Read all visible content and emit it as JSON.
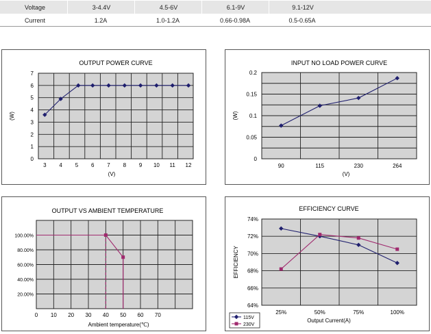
{
  "spec_table": {
    "rows": [
      {
        "label": "Voltage",
        "values": [
          "3-4.4V",
          "4.5-6V",
          "6.1-9V",
          "9.1-12V"
        ]
      },
      {
        "label": "Current",
        "values": [
          "1.2A",
          "1.0-1.2A",
          "0.66-0.98A",
          "0.5-0.65A"
        ]
      }
    ]
  },
  "chart_data": [
    {
      "type": "line",
      "title": "OUTPUT POWER CURVE",
      "xlabel": "(V)",
      "ylabel": "(W)",
      "x_ticks": [
        "3",
        "4",
        "5",
        "6",
        "7",
        "8",
        "9",
        "10",
        "11",
        "12"
      ],
      "y_ticks": [
        "0",
        "1",
        "2",
        "3",
        "4",
        "5",
        "6",
        "7"
      ],
      "xlim": [
        2.6,
        12.3
      ],
      "ylim": [
        0,
        7
      ],
      "grid": true,
      "series": [
        {
          "color": "#1f1f6e",
          "marker": "diamond",
          "x": [
            3,
            4,
            5.1,
            6,
            7,
            8,
            9,
            10,
            11,
            12
          ],
          "y": [
            3.6,
            4.9,
            6,
            6,
            6,
            6,
            6,
            6,
            6,
            6
          ]
        }
      ]
    },
    {
      "type": "line",
      "title": "INPUT NO LOAD POWER CURVE",
      "xlabel": "(V)",
      "ylabel": "(W)",
      "categories": [
        "90",
        "115",
        "230",
        "264"
      ],
      "y_ticks": [
        "0",
        "0.05",
        "0.1",
        "0.15",
        "0.2"
      ],
      "ylim": [
        0,
        0.2
      ],
      "grid": true,
      "series": [
        {
          "color": "#1f1f6e",
          "marker": "diamond",
          "values": [
            0.077,
            0.123,
            0.141,
            0.187
          ]
        }
      ]
    },
    {
      "type": "line",
      "title": "OUTPUT VS AMBIENT TEMPERATURE",
      "xlabel": "Ambient temperature(℃)",
      "ylabel": "",
      "x_ticks": [
        "0",
        "10",
        "20",
        "30",
        "40",
        "50",
        "60",
        "70"
      ],
      "y_ticks": [
        "20.00%",
        "40.00%",
        "60.00%",
        "80.00%",
        "100.00%"
      ],
      "xlim": [
        0,
        90
      ],
      "ylim": [
        0,
        1.2
      ],
      "grid": true,
      "series": [
        {
          "color": "#a02a6e",
          "marker": "square",
          "x": [
            0,
            40,
            50
          ],
          "y": [
            1.0,
            1.0,
            0.7
          ]
        }
      ],
      "annotations": [
        {
          "type": "vertical-dashed",
          "x": 40,
          "from": 0,
          "to": 1.0
        },
        {
          "type": "vertical-solid",
          "x": 50,
          "from": 0,
          "to": 0.7
        }
      ]
    },
    {
      "type": "line",
      "title": "EFFICIENCY  CURVE",
      "xlabel": "Output Current(A)",
      "ylabel": "EFFICIENCY",
      "categories": [
        "25%",
        "50%",
        "75%",
        "100%"
      ],
      "y_ticks": [
        "64%",
        "66%",
        "68%",
        "70%",
        "72%",
        "74%"
      ],
      "ylim": [
        64,
        74
      ],
      "grid": true,
      "legend": "bottom-left",
      "series": [
        {
          "name": "115V",
          "color": "#1f1f6e",
          "marker": "diamond",
          "values": [
            72.9,
            72.0,
            71.0,
            68.9
          ]
        },
        {
          "name": "230V",
          "color": "#a02a6e",
          "marker": "square",
          "values": [
            68.2,
            72.2,
            71.8,
            70.5
          ]
        }
      ]
    }
  ]
}
